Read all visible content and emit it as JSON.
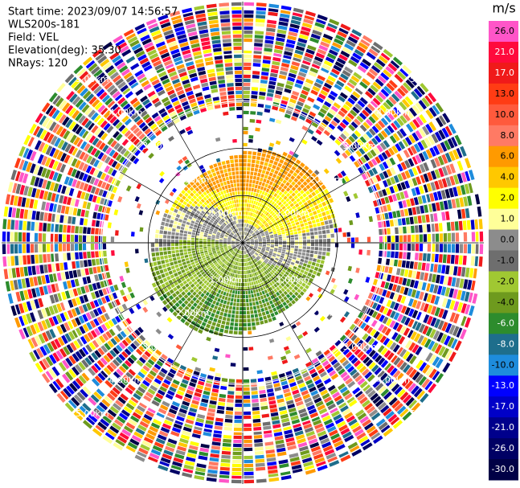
{
  "chart_data": {
    "type": "radar-ppi",
    "info": [
      "Start time: 2023/09/07 14:56:57",
      "WLS200s-181",
      "Field: VEL",
      "Elevation(deg): 35.30",
      "NRays: 120"
    ],
    "rlim": [
      0,
      5.1
    ],
    "range_rings": [
      {
        "value": 1,
        "label": "1.00km"
      },
      {
        "value": 2,
        "label": "2.00km"
      },
      {
        "value": 3,
        "label": "3.00km"
      },
      {
        "value": 4,
        "label": "4.00km"
      },
      {
        "value": 5,
        "label": "5.00km"
      }
    ],
    "colorbar": {
      "title": "m/s",
      "ticks": [
        {
          "value": 26,
          "label": "26.0"
        },
        {
          "value": 21,
          "label": "21.0"
        },
        {
          "value": 17,
          "label": "17.0"
        },
        {
          "value": 13,
          "label": "13.0"
        },
        {
          "value": 10,
          "label": "10.0"
        },
        {
          "value": 8,
          "label": "8.0"
        },
        {
          "value": 6,
          "label": "6.0"
        },
        {
          "value": 4,
          "label": "4.0"
        },
        {
          "value": 2,
          "label": "2.0"
        },
        {
          "value": 1,
          "label": "1.0"
        },
        {
          "value": 0,
          "label": "0.0"
        },
        {
          "value": -1,
          "label": "-1.0"
        },
        {
          "value": -2,
          "label": "-2.0"
        },
        {
          "value": -4,
          "label": "-4.0"
        },
        {
          "value": -6,
          "label": "-6.0"
        },
        {
          "value": -8,
          "label": "-8.0"
        },
        {
          "value": -10,
          "label": "-10.0"
        },
        {
          "value": -13,
          "label": "-13.0"
        },
        {
          "value": -17,
          "label": "-17.0"
        },
        {
          "value": -21,
          "label": "-21.0"
        },
        {
          "value": -26,
          "label": "-26.0"
        },
        {
          "value": -30,
          "label": "-30.0"
        }
      ],
      "colors": [
        "#ff55c8",
        "#ff0a3c",
        "#f01a1a",
        "#ff3c14",
        "#ff5a3c",
        "#ff7a64",
        "#ff9a00",
        "#ffc800",
        "#ffff00",
        "#ffff99",
        "#8c8c8c",
        "#6e6e6e",
        "#a0c832",
        "#6e9a1e",
        "#2d8c2d",
        "#1e6e8c",
        "#1e8cdc",
        "#0000ff",
        "#0000c8",
        "#00008c",
        "#000064",
        "#000046"
      ]
    }
  }
}
